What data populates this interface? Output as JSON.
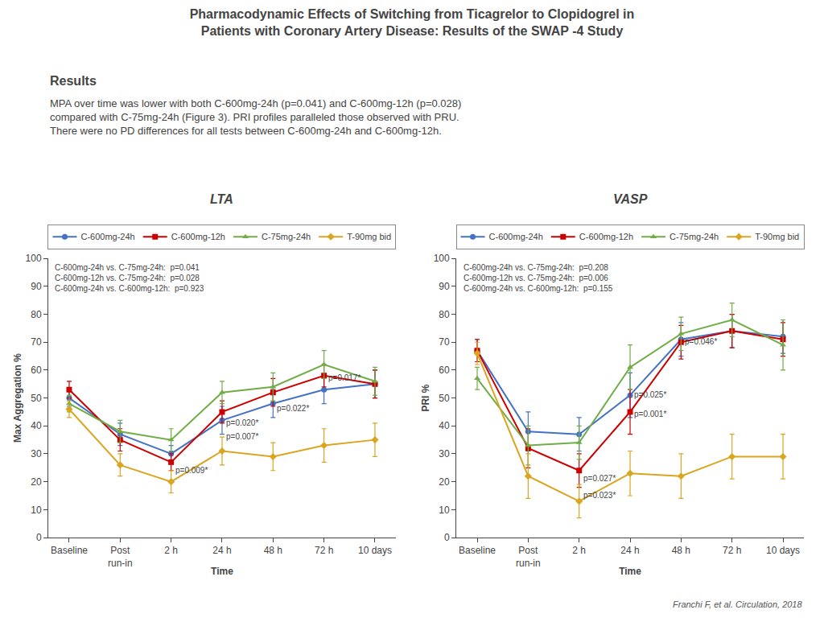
{
  "title": "Pharmacodynamic Effects of Switching from Ticagrelor to Clopidogrel in\nPatients with Coronary Artery Disease: Results of the SWAP -4 Study",
  "subtitle": "Results",
  "body_text": "MPA over time was lower with both C-600mg-24h (p=0.041) and C-600mg-12h (p=0.028)\ncompared with C-75mg-24h (Figure 3). PRI profiles paralleled those observed with PRU.\nThere were no PD differences for all tests between C-600mg-24h and C-600mg-12h.",
  "citation": "Franchi F, et al. Circulation, 2018",
  "chart_data": [
    {
      "type": "line",
      "title": "LTA",
      "x_label": "Time",
      "y_label": "Max Aggregation %",
      "categories": [
        "Baseline",
        "Post\nrun-in",
        "2 h",
        "24 h",
        "48 h",
        "72 h",
        "10 days"
      ],
      "ylim": [
        0,
        100
      ],
      "yticks": [
        0,
        10,
        20,
        30,
        40,
        50,
        60,
        70,
        80,
        90,
        100
      ],
      "grid": false,
      "legend": "top",
      "stats_text": "C-600mg-24h vs. C-75mg-24h:  p=0.041\nC-600mg-12h vs. C-75mg-24h:  p=0.028\nC-600mg-24h vs. C-600mg-12h:  p=0.923",
      "series": [
        {
          "name": "C-600mg-24h",
          "color": "#4472C4",
          "marker": "circle",
          "values": [
            50,
            37,
            30,
            42,
            48,
            53,
            55
          ],
          "errors": [
            3,
            4,
            3,
            5,
            5,
            5,
            5
          ]
        },
        {
          "name": "C-600mg-12h",
          "color": "#CC0000",
          "marker": "square",
          "values": [
            53,
            35,
            27,
            45,
            52,
            58,
            55
          ],
          "errors": [
            3,
            4,
            3,
            4,
            5,
            4,
            5
          ]
        },
        {
          "name": "C-75mg-24h",
          "color": "#70AD47",
          "marker": "triangle-up",
          "values": [
            48,
            38,
            35,
            52,
            54,
            62,
            56
          ],
          "errors": [
            3,
            4,
            4,
            4,
            5,
            5,
            5
          ]
        },
        {
          "name": "T-90mg bid",
          "color": "#DAA520",
          "marker": "diamond",
          "values": [
            46,
            26,
            20,
            31,
            29,
            33,
            35
          ],
          "errors": [
            3,
            4,
            4,
            5,
            5,
            6,
            6
          ]
        }
      ],
      "annotations": [
        {
          "category": "2 h",
          "y": 22,
          "text": "p=0.009*"
        },
        {
          "category": "24 h",
          "y": 39,
          "text": "p=0.020*"
        },
        {
          "category": "24 h",
          "y": 34,
          "text": "p=0.007*"
        },
        {
          "category": "48 h",
          "y": 44,
          "text": "p=0.022*"
        },
        {
          "category": "72 h",
          "y": 55,
          "text": "p=0.017*"
        }
      ]
    },
    {
      "type": "line",
      "title": "VASP",
      "x_label": "Time",
      "y_label": "PRI %",
      "categories": [
        "Baseline",
        "Post\nrun-in",
        "2 h",
        "24 h",
        "48 h",
        "72 h",
        "10 days"
      ],
      "ylim": [
        0,
        100
      ],
      "yticks": [
        0,
        10,
        20,
        30,
        40,
        50,
        60,
        70,
        80,
        90,
        100
      ],
      "grid": false,
      "legend": "top",
      "stats_text": "C-600mg-24h vs. C-75mg-24h:  p=0.208\nC-600mg-12h vs. C-75mg-24h:  p=0.006\nC-600mg-24h vs. C-600mg-12h:  p=0.155",
      "series": [
        {
          "name": "C-600mg-24h",
          "color": "#4472C4",
          "marker": "circle",
          "values": [
            67,
            38,
            37,
            51,
            71,
            74,
            72
          ],
          "errors": [
            4,
            7,
            6,
            8,
            6,
            6,
            6
          ]
        },
        {
          "name": "C-600mg-12h",
          "color": "#CC0000",
          "marker": "square",
          "values": [
            67,
            32,
            24,
            45,
            70,
            74,
            71
          ],
          "errors": [
            4,
            7,
            6,
            8,
            6,
            6,
            6
          ]
        },
        {
          "name": "C-75mg-24h",
          "color": "#70AD47",
          "marker": "triangle-up",
          "values": [
            57,
            33,
            34,
            61,
            73,
            78,
            69
          ],
          "errors": [
            4,
            7,
            6,
            8,
            6,
            6,
            9
          ]
        },
        {
          "name": "T-90mg bid",
          "color": "#DAA520",
          "marker": "diamond",
          "values": [
            66,
            22,
            13,
            23,
            22,
            29,
            29
          ],
          "errors": [
            4,
            8,
            6,
            8,
            8,
            8,
            8
          ]
        }
      ],
      "annotations": [
        {
          "category": "2 h",
          "y": 19,
          "text": "p=0.027*"
        },
        {
          "category": "2 h",
          "y": 13,
          "text": "p=0.023*"
        },
        {
          "category": "24 h",
          "y": 49,
          "text": "p=0.025*"
        },
        {
          "category": "24 h",
          "y": 42,
          "text": "p=0.001*"
        },
        {
          "category": "48 h",
          "y": 68,
          "text": "p=0.046*"
        }
      ]
    }
  ]
}
